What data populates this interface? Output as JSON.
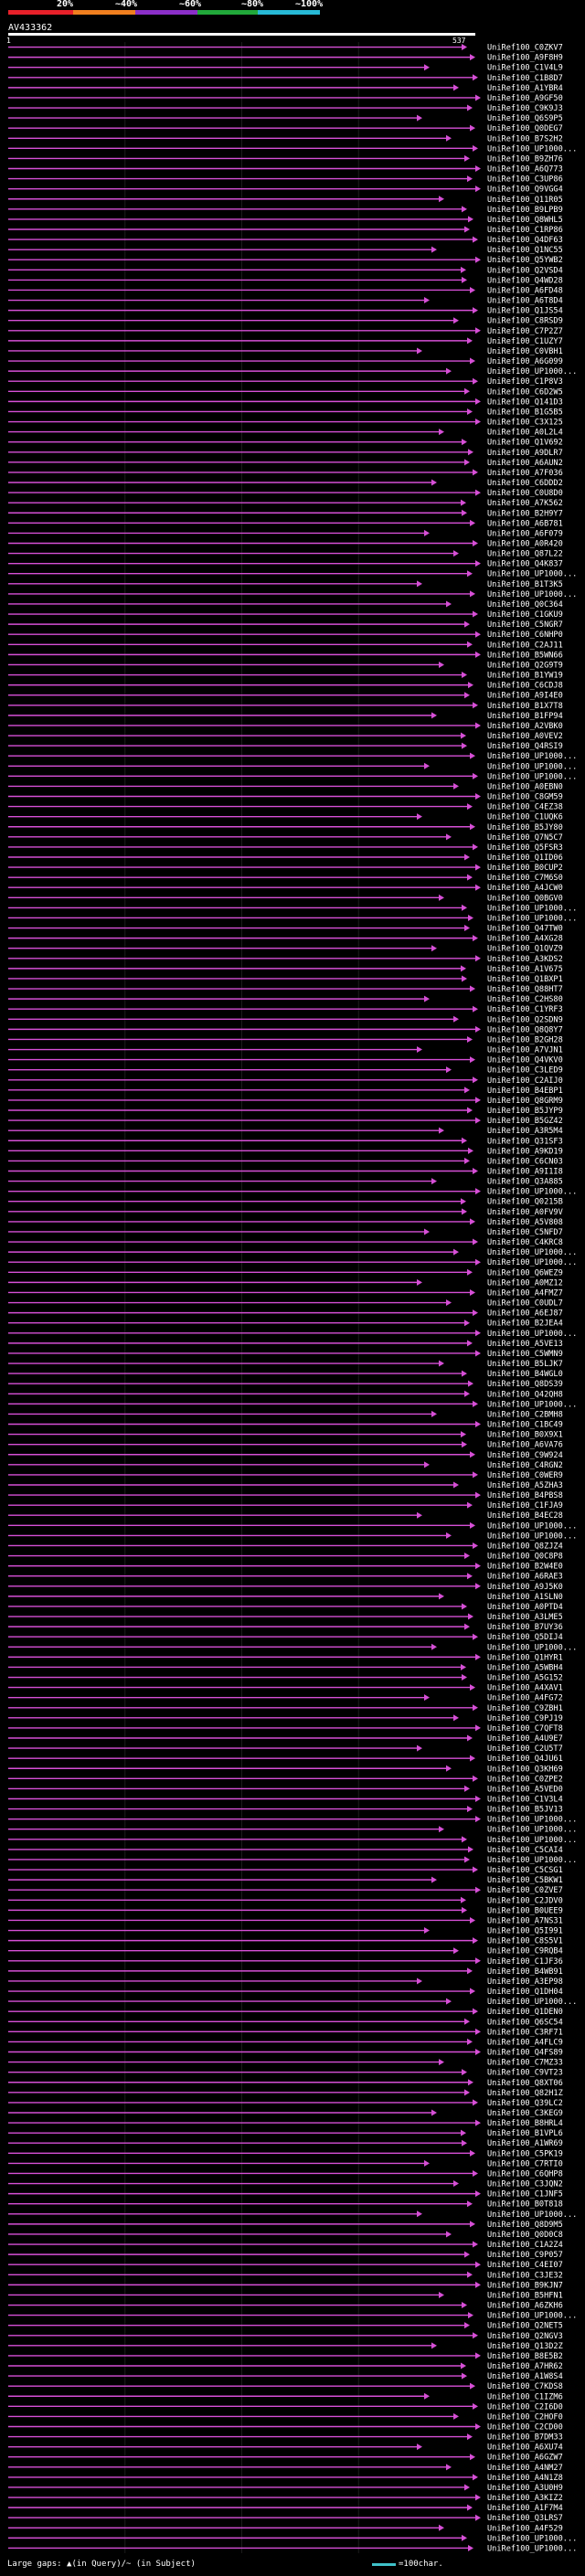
{
  "scale": {
    "ticks": [
      "20%",
      "~40%",
      "~60%",
      "~80%",
      "~100%"
    ],
    "colors": [
      "#e8202a",
      "#f07f1f",
      "#8b2fc8",
      "#21a83a",
      "#27b9d6"
    ]
  },
  "query": {
    "name": "AV433362",
    "start": "1",
    "end": "537"
  },
  "chart_data": {
    "type": "alignment-overview",
    "query_length": 537,
    "hit_color": "#d64fd6",
    "hits": [
      "UniRef100_C0ZKV7",
      "UniRef100_A9F8H9",
      "UniRef100_C1V4L9",
      "UniRef100_C1B8D7",
      "UniRef100_A1YBR4",
      "UniRef100_A9GF50",
      "UniRef100_C9K9J3",
      "UniRef100_Q6S9P5",
      "UniRef100_Q0DEG7",
      "UniRef100_B7S2H2",
      "UniRef100_UP1000...",
      "UniRef100_B9ZH76",
      "UniRef100_A6Q773",
      "UniRef100_C3UP86",
      "UniRef100_Q9VGG4",
      "UniRef100_Q11R05",
      "UniRef100_B9LPB9",
      "UniRef100_Q8WHL5",
      "UniRef100_C1RP86",
      "UniRef100_Q4DF63",
      "UniRef100_Q1NC55",
      "UniRef100_Q5YWB2",
      "UniRef100_Q2VSD4",
      "UniRef100_Q4WD28",
      "UniRef100_A6FD48",
      "UniRef100_A6T8D4",
      "UniRef100_Q1JS54",
      "UniRef100_C8RSD9",
      "UniRef100_C7P2Z7",
      "UniRef100_C1UZY7",
      "UniRef100_C0VBH1",
      "UniRef100_A6G099",
      "UniRef100_UP1000...",
      "UniRef100_C1P8V3",
      "UniRef100_C6D2W5",
      "UniRef100_Q141D3",
      "UniRef100_B1G5B5",
      "UniRef100_C3X125",
      "UniRef100_A0L2L4",
      "UniRef100_Q1V692",
      "UniRef100_A9DLR7",
      "UniRef100_A6AUN2",
      "UniRef100_A7F036",
      "UniRef100_C6DDD2",
      "UniRef100_C0U8D0",
      "UniRef100_A7K562",
      "UniRef100_B2H9Y7",
      "UniRef100_A6B781",
      "UniRef100_A6F079",
      "UniRef100_A0R420",
      "UniRef100_Q87L22",
      "UniRef100_Q4K837",
      "UniRef100_UP1000...",
      "UniRef100_B1T3K5",
      "UniRef100_UP1000...",
      "UniRef100_Q0C364",
      "UniRef100_C1GKU9",
      "UniRef100_C5NGR7",
      "UniRef100_C6NHP0",
      "UniRef100_C2AJ11",
      "UniRef100_B5WN66",
      "UniRef100_Q2G9T9",
      "UniRef100_B1YW19",
      "UniRef100_C6CDJ8",
      "UniRef100_A9I4E0",
      "UniRef100_B1X7T8",
      "UniRef100_B1FP94",
      "UniRef100_A2VBK0",
      "UniRef100_A0VEV2",
      "UniRef100_Q4RSI9",
      "UniRef100_UP1000...",
      "UniRef100_UP1000...",
      "UniRef100_UP1000...",
      "UniRef100_A0EBN0",
      "UniRef100_C8GM59",
      "UniRef100_C4EZ38",
      "UniRef100_C1UQK6",
      "UniRef100_B5JY80",
      "UniRef100_Q7N5C7",
      "UniRef100_Q5FSR3",
      "UniRef100_Q1ID06",
      "UniRef100_B0CUP2",
      "UniRef100_C7M6S0",
      "UniRef100_A4JCW0",
      "UniRef100_Q0BGV0",
      "UniRef100_UP1000...",
      "UniRef100_UP1000...",
      "UniRef100_Q47TW0",
      "UniRef100_A4XG28",
      "UniRef100_Q1QVZ9",
      "UniRef100_A3KDS2",
      "UniRef100_A1V675",
      "UniRef100_Q1BXP1",
      "UniRef100_Q88HT7",
      "UniRef100_C2HS80",
      "UniRef100_C1YRF3",
      "UniRef100_Q2SDN9",
      "UniRef100_Q8Q8Y7",
      "UniRef100_B2GH28",
      "UniRef100_A7VJN1",
      "UniRef100_Q4VKV0",
      "UniRef100_C3LED9",
      "UniRef100_C2AIJ0",
      "UniRef100_B4EBP1",
      "UniRef100_Q8GRM9",
      "UniRef100_B5JYP9",
      "UniRef100_B5GZ42",
      "UniRef100_A3R5M4",
      "UniRef100_Q31SF3",
      "UniRef100_A9KD19",
      "UniRef100_C6CN03",
      "UniRef100_A9I1I8",
      "UniRef100_Q3A885",
      "UniRef100_UP1000...",
      "UniRef100_Q0215B",
      "UniRef100_A0FV9V",
      "UniRef100_A5V808",
      "UniRef100_C5NFD7",
      "UniRef100_C4KRC8",
      "UniRef100_UP1000...",
      "UniRef100_UP1000...",
      "UniRef100_Q6WEZ9",
      "UniRef100_A0MZ12",
      "UniRef100_A4FMZ7",
      "UniRef100_C0UDL7",
      "UniRef100_A6EJ87",
      "UniRef100_B2JEA4",
      "UniRef100_UP1000...",
      "UniRef100_A5VE13",
      "UniRef100_C5WMN9",
      "UniRef100_B5LJK7",
      "UniRef100_B4WGL0",
      "UniRef100_Q8DS39",
      "UniRef100_Q42QH8",
      "UniRef100_UP1000...",
      "UniRef100_C2BMH8",
      "UniRef100_C1BC49",
      "UniRef100_B0X9X1",
      "UniRef100_A6VA76",
      "UniRef100_C9W924",
      "UniRef100_C4RGN2",
      "UniRef100_C0WER9",
      "UniRef100_A5ZHA3",
      "UniRef100_B4PBS8",
      "UniRef100_C1FJA9",
      "UniRef100_B4EC28",
      "UniRef100_UP1000...",
      "UniRef100_UP1000...",
      "UniRef100_Q8ZJZ4",
      "UniRef100_Q0C8P8",
      "UniRef100_B2W4E0",
      "UniRef100_A6RAE3",
      "UniRef100_A9J5K0",
      "UniRef100_A1SLN0",
      "UniRef100_A0PTD4",
      "UniRef100_A3LME5",
      "UniRef100_B7UY36",
      "UniRef100_Q5DIJ4",
      "UniRef100_UP1000...",
      "UniRef100_Q1HYR1",
      "UniRef100_A5WBH4",
      "UniRef100_A5G152",
      "UniRef100_A4XAV1",
      "UniRef100_A4FG72",
      "UniRef100_C9ZBH1",
      "UniRef100_C9PJ19",
      "UniRef100_C7QFT8",
      "UniRef100_A4U9E7",
      "UniRef100_C2U5T7",
      "UniRef100_Q4JU61",
      "UniRef100_Q3KH69",
      "UniRef100_C0ZPE2",
      "UniRef100_A5VED0",
      "UniRef100_C1V3L4",
      "UniRef100_B5JV13",
      "UniRef100_UP1000...",
      "UniRef100_UP1000...",
      "UniRef100_UP1000...",
      "UniRef100_C5CAI4",
      "UniRef100_UP1000...",
      "UniRef100_C5CSG1",
      "UniRef100_C5BKW1",
      "UniRef100_C0ZVE7",
      "UniRef100_C2JDV0",
      "UniRef100_B0UEE9",
      "UniRef100_A7NS31",
      "UniRef100_Q5I991",
      "UniRef100_C8S5V1",
      "UniRef100_C9RQB4",
      "UniRef100_C1JF36",
      "UniRef100_B4WB91",
      "UniRef100_A3EP98",
      "UniRef100_Q1DH04",
      "UniRef100_UP1000...",
      "UniRef100_Q1DEN0",
      "UniRef100_Q6SC54",
      "UniRef100_C3RF71",
      "UniRef100_A4FLC9",
      "UniRef100_Q4FS89",
      "UniRef100_C7MZ33",
      "UniRef100_C9VT23",
      "UniRef100_Q8XT06",
      "UniRef100_Q82H1Z",
      "UniRef100_Q39LC2",
      "UniRef100_C3KEG9",
      "UniRef100_B8HRL4",
      "UniRef100_B1VPL6",
      "UniRef100_A1WR69",
      "UniRef100_C5PK19",
      "UniRef100_C7RTI0",
      "UniRef100_C6QHP8",
      "UniRef100_C3JQN2",
      "UniRef100_C1JNF5",
      "UniRef100_B0T818",
      "UniRef100_UP1000...",
      "UniRef100_Q8D9M5",
      "UniRef100_Q0D0C8",
      "UniRef100_C1A2Z4",
      "UniRef100_C9P057",
      "UniRef100_C4EI07",
      "UniRef100_C3JE32",
      "UniRef100_B9KJN7",
      "UniRef100_B5HFN1",
      "UniRef100_A6ZKH6",
      "UniRef100_UP1000...",
      "UniRef100_Q2NET5",
      "UniRef100_Q2NGV3",
      "UniRef100_Q13D2Z",
      "UniRef100_B8E5B2",
      "UniRef100_A7HR62",
      "UniRef100_A1W8S4",
      "UniRef100_C7KDS8",
      "UniRef100_C1IZM6",
      "UniRef100_C2I6D0",
      "UniRef100_C2HOF0",
      "UniRef100_C2CD00",
      "UniRef100_B7DM33",
      "UniRef100_A6XU74",
      "UniRef100_A6GZW7",
      "UniRef100_A4NM27",
      "UniRef100_A4N1Z8",
      "UniRef100_A3U0H9",
      "UniRef100_A3KIZ2",
      "UniRef100_A1F7M4",
      "UniRef100_Q3LRS7",
      "UniRef100_A4F529",
      "UniRef100_UP1000...",
      "UniRef100_UP1000..."
    ]
  },
  "legend": {
    "gaps_text": "Large gaps: ▲(in Query)/~ (in Subject)",
    "scale_text": "=100char."
  }
}
